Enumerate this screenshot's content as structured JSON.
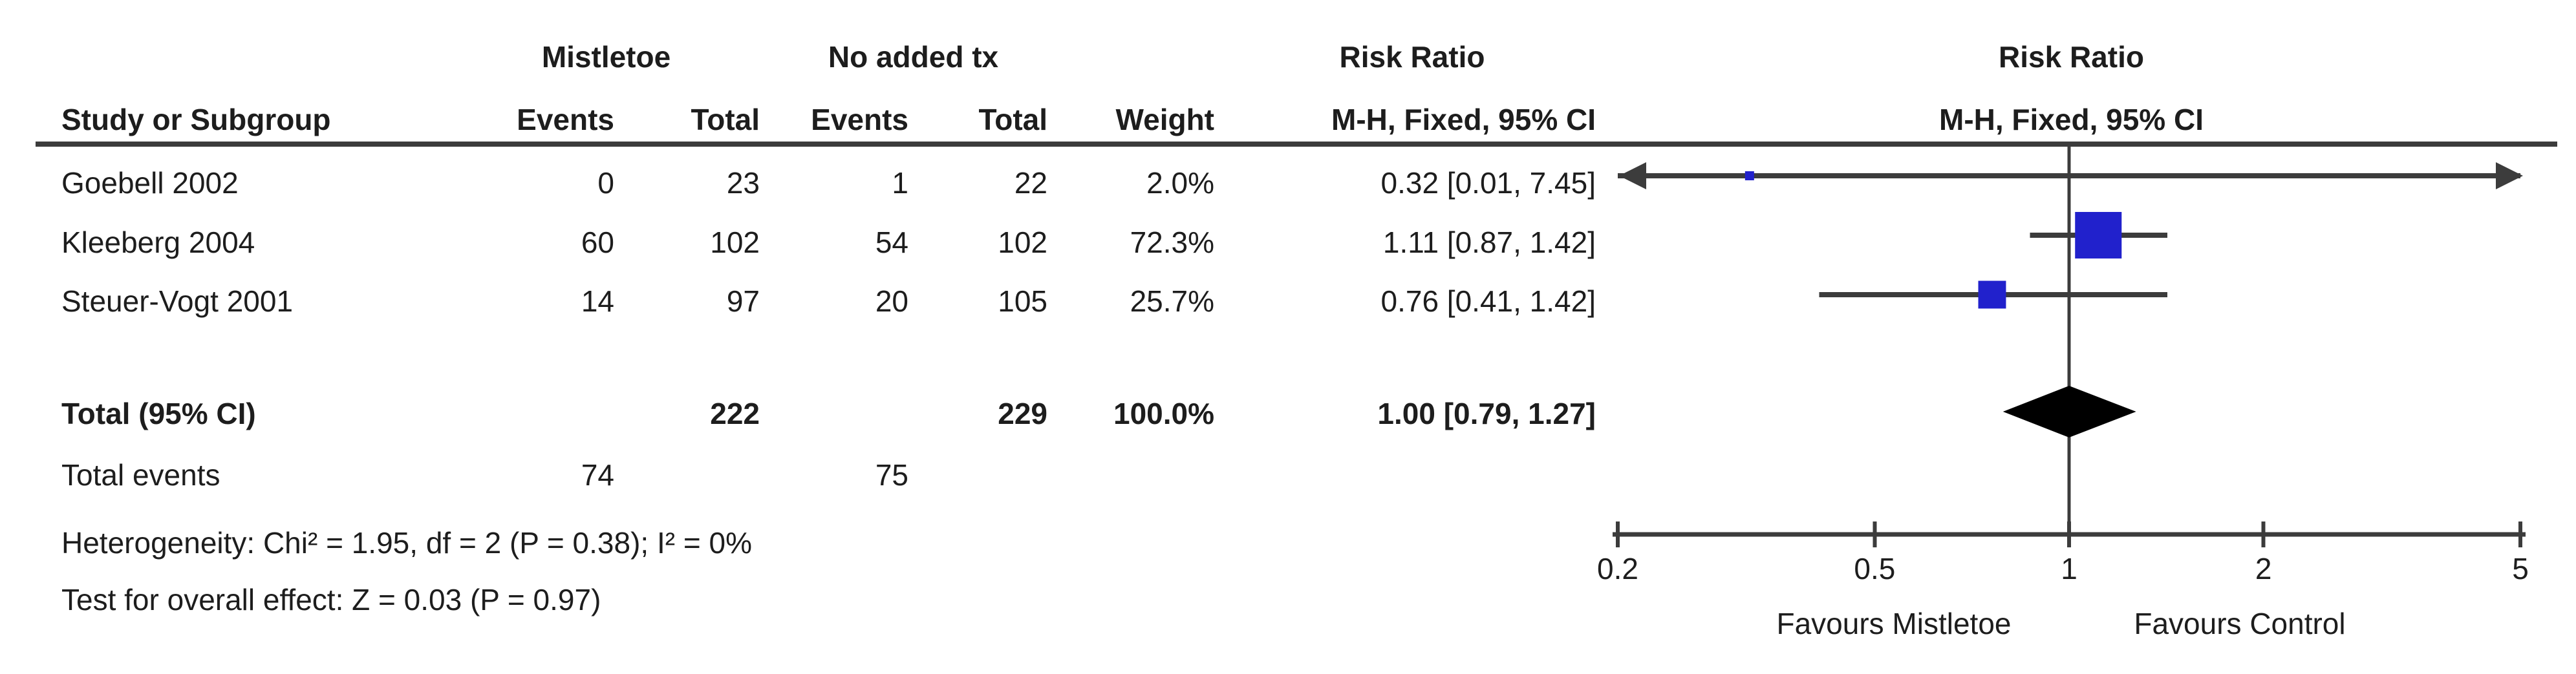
{
  "table": {
    "group_headers": {
      "mistletoe": "Mistletoe",
      "no_added_tx": "No added tx",
      "risk_ratio": "Risk Ratio"
    },
    "col_headers": {
      "study": "Study or Subgroup",
      "events1": "Events",
      "total1": "Total",
      "events2": "Events",
      "total2": "Total",
      "weight": "Weight",
      "mh_ci": "M-H, Fixed, 95% CI"
    },
    "rows": [
      {
        "study": "Goebell 2002",
        "mist_events": "0",
        "mist_total": "23",
        "notx_events": "1",
        "notx_total": "22",
        "weight": "2.0%",
        "rr_ci": "0.32 [0.01, 7.45]"
      },
      {
        "study": "Kleeberg 2004",
        "mist_events": "60",
        "mist_total": "102",
        "notx_events": "54",
        "notx_total": "102",
        "weight": "72.3%",
        "rr_ci": "1.11 [0.87, 1.42]"
      },
      {
        "study": "Steuer-Vogt 2001",
        "mist_events": "14",
        "mist_total": "97",
        "notx_events": "20",
        "notx_total": "105",
        "weight": "25.7%",
        "rr_ci": "0.76 [0.41, 1.42]"
      }
    ],
    "total_row": {
      "label": "Total (95% CI)",
      "mist_total": "222",
      "notx_total": "229",
      "weight": "100.0%",
      "rr_ci": "1.00 [0.79, 1.27]"
    },
    "total_events": {
      "label": "Total events",
      "mist_events": "74",
      "notx_events": "75"
    },
    "footnotes": {
      "heterogeneity": "Heterogeneity: Chi² = 1.95, df = 2 (P = 0.38); I² = 0%",
      "overall_effect": "Test for overall effect: Z = 0.03 (P = 0.97)"
    }
  },
  "plot": {
    "header_line1": "Risk Ratio",
    "header_line2": "M-H, Fixed, 95% CI",
    "favours_left": "Favours Mistletoe",
    "favours_right": "Favours Control",
    "colors": {
      "square": "#2121CC",
      "diamond": "#000000",
      "line": "#3c3c3c",
      "text": "#1d1d1d"
    }
  },
  "chart_data": {
    "type": "scatter",
    "subtype": "forest_plot",
    "effect_measure": "Risk Ratio (M-H, Fixed, 95% CI)",
    "x_scale": "log",
    "xlim": [
      0.2,
      5
    ],
    "x_ticks": [
      0.2,
      0.5,
      1,
      2,
      5
    ],
    "null_line": 1,
    "studies": [
      {
        "name": "Goebell 2002",
        "rr": 0.32,
        "ci_low": 0.01,
        "ci_high": 7.45,
        "weight_pct": 2.0
      },
      {
        "name": "Kleeberg 2004",
        "rr": 1.11,
        "ci_low": 0.87,
        "ci_high": 1.42,
        "weight_pct": 72.3
      },
      {
        "name": "Steuer-Vogt 2001",
        "rr": 0.76,
        "ci_low": 0.41,
        "ci_high": 1.42,
        "weight_pct": 25.7
      }
    ],
    "total": {
      "name": "Total (95% CI)",
      "rr": 1.0,
      "ci_low": 0.79,
      "ci_high": 1.27
    },
    "axis_label_left": "Favours Mistletoe",
    "axis_label_right": "Favours Control"
  }
}
